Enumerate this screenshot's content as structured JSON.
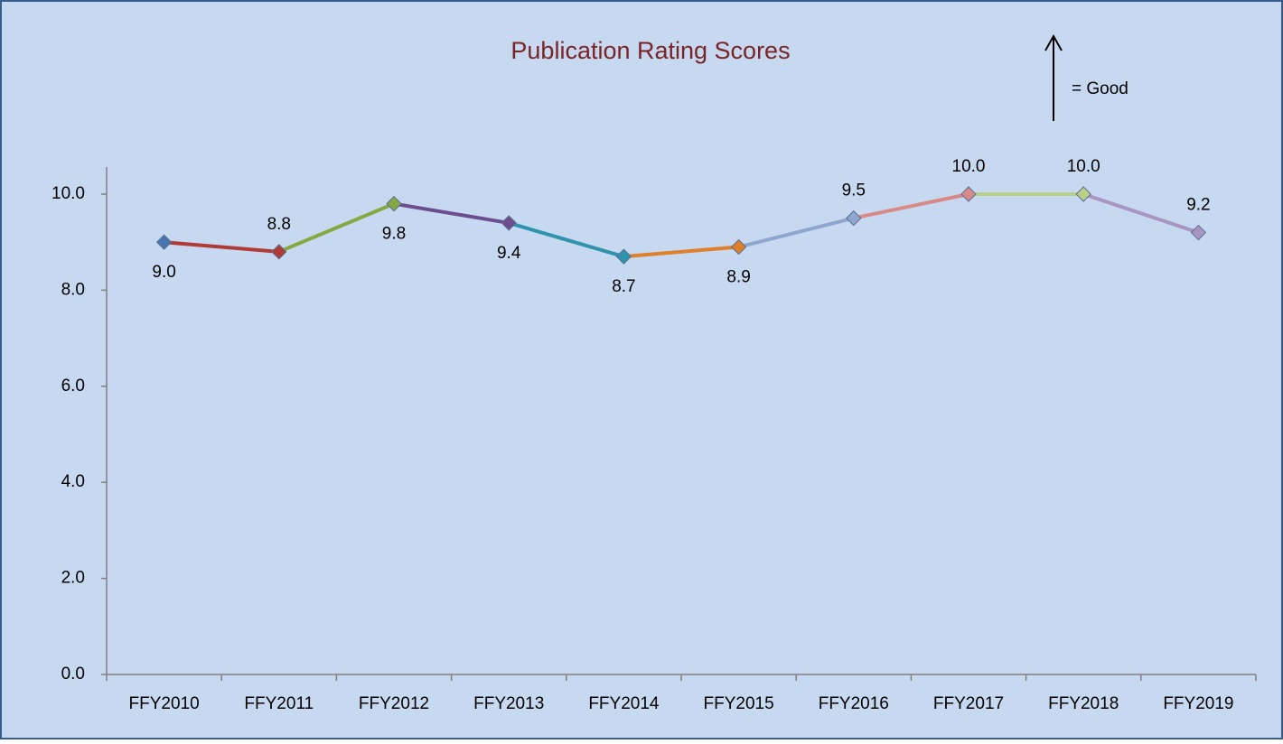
{
  "chart_data": {
    "type": "line",
    "title": "Publication Rating Scores",
    "annotation": "= Good",
    "categories": [
      "FFY2010",
      "FFY2011",
      "FFY2012",
      "FFY2013",
      "FFY2014",
      "FFY2015",
      "FFY2016",
      "FFY2017",
      "FFY2018",
      "FFY2019"
    ],
    "values": [
      9.0,
      8.8,
      9.8,
      9.4,
      8.7,
      8.9,
      9.5,
      10.0,
      10.0,
      9.2
    ],
    "value_labels": [
      "9.0",
      "8.8",
      "9.8",
      "9.4",
      "8.7",
      "8.9",
      "9.5",
      "10.0",
      "10.0",
      "9.2"
    ],
    "colors": [
      "#4a76b0",
      "#b03a36",
      "#86a843",
      "#6c4e8e",
      "#2f93ac",
      "#e07f2a",
      "#8fa7cf",
      "#d98a87",
      "#b8d08a",
      "#a895c0"
    ],
    "ylim": [
      0,
      10
    ],
    "yticks": [
      {
        "value": 0,
        "label": "0.0"
      },
      {
        "value": 2,
        "label": "2.0"
      },
      {
        "value": 4,
        "label": "4.0"
      },
      {
        "value": 6,
        "label": "6.0"
      },
      {
        "value": 8,
        "label": "8.0"
      },
      {
        "value": 10,
        "label": "10.0"
      }
    ],
    "grid": false
  }
}
